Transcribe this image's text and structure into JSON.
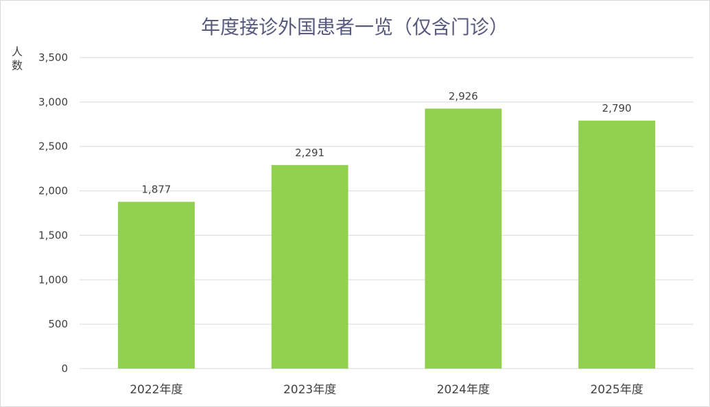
{
  "chart_data": {
    "type": "bar",
    "title": "年度接诊外国患者一览（仅含门诊）",
    "xlabel": "",
    "ylabel": "人数",
    "categories": [
      "2022年度",
      "2023年度",
      "2024年度",
      "2025年度"
    ],
    "values": [
      1877,
      2291,
      2926,
      2790
    ],
    "value_labels": [
      "1,877",
      "2,291",
      "2,926",
      "2,790"
    ],
    "ylim": [
      0,
      3500
    ],
    "yticks": [
      0,
      500,
      1000,
      1500,
      2000,
      2500,
      3000,
      3500
    ],
    "ytick_labels": [
      "0",
      "500",
      "1,000",
      "1,500",
      "2,000",
      "2,500",
      "3,000",
      "3,500"
    ],
    "grid": true,
    "legend": "none",
    "bar_color": "#92d050",
    "grid_color": "#d9d9d9",
    "title_color": "#595980"
  }
}
